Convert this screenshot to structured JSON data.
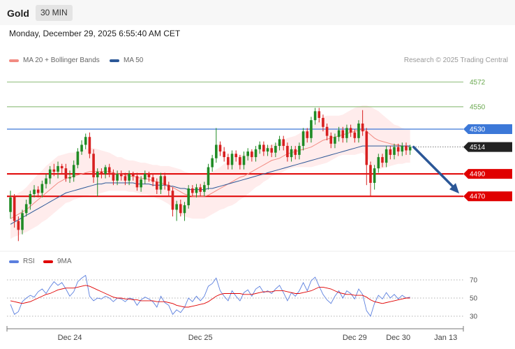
{
  "header": {
    "symbol": "Gold",
    "timeframe": "30 MIN"
  },
  "datetime": "Monday, December 29, 2025 6:55:40 AM CET",
  "legend_main": [
    {
      "label": "MA 20 + Bollinger Bands",
      "color": "#f28b82"
    },
    {
      "label": "MA 50",
      "color": "#2b5797"
    }
  ],
  "credit": "Research © 2025 Trading Central",
  "legend_rsi": [
    {
      "label": "RSI",
      "color": "#5b7fde"
    },
    {
      "label": "9MA",
      "color": "#e00000"
    }
  ],
  "chart_data": {
    "type": "candlestick",
    "y_range": [
      4424,
      4583
    ],
    "levels": [
      {
        "label": "4572",
        "value": 4572,
        "style": "target",
        "color": "#6aa84f"
      },
      {
        "label": "4550",
        "value": 4550,
        "style": "target",
        "color": "#6aa84f"
      },
      {
        "label": "4530",
        "value": 4530,
        "style": "resistance",
        "color": "#3c78d8"
      },
      {
        "label": "4514",
        "value": 4514,
        "style": "last",
        "color": "#222222"
      },
      {
        "label": "4490",
        "value": 4490,
        "style": "support",
        "color": "#e00000"
      },
      {
        "label": "4470",
        "value": 4470,
        "style": "support",
        "color": "#e00000"
      }
    ],
    "forecast_arrow": {
      "from": 4514,
      "to": 4470,
      "color": "#2b5797"
    },
    "candles": [
      [
        4456,
        4469,
        4450,
        4475
      ],
      [
        4470,
        4448,
        4442,
        4472
      ],
      [
        4448,
        4440,
        4430,
        4452
      ],
      [
        4440,
        4455,
        4436,
        4458
      ],
      [
        4455,
        4463,
        4452,
        4467
      ],
      [
        4463,
        4472,
        4458,
        4475
      ],
      [
        4472,
        4476,
        4469,
        4480
      ],
      [
        4476,
        4473,
        4469,
        4479
      ],
      [
        4473,
        4481,
        4469,
        4484
      ],
      [
        4481,
        4486,
        4477,
        4490
      ],
      [
        4486,
        4494,
        4481,
        4497
      ],
      [
        4494,
        4492,
        4488,
        4499
      ],
      [
        4492,
        4497,
        4486,
        4501
      ],
      [
        4497,
        4495,
        4490,
        4499
      ],
      [
        4495,
        4486,
        4483,
        4499
      ],
      [
        4486,
        4487,
        4482,
        4493
      ],
      [
        4487,
        4498,
        4483,
        4502
      ],
      [
        4498,
        4510,
        4495,
        4513
      ],
      [
        4510,
        4516,
        4507,
        4520
      ],
      [
        4516,
        4523,
        4512,
        4526
      ],
      [
        4523,
        4508,
        4504,
        4527
      ],
      [
        4508,
        4487,
        4482,
        4512
      ],
      [
        4487,
        4492,
        4470,
        4495
      ],
      [
        4492,
        4490,
        4486,
        4495
      ],
      [
        4490,
        4496,
        4486,
        4498
      ],
      [
        4496,
        4491,
        4487,
        4499
      ],
      [
        4491,
        4484,
        4480,
        4494
      ],
      [
        4484,
        4490,
        4480,
        4493
      ],
      [
        4490,
        4488,
        4484,
        4493
      ],
      [
        4488,
        4484,
        4480,
        4491
      ],
      [
        4484,
        4490,
        4480,
        4493
      ],
      [
        4490,
        4488,
        4484,
        4492
      ],
      [
        4488,
        4478,
        4475,
        4491
      ],
      [
        4478,
        4485,
        4474,
        4488
      ],
      [
        4485,
        4490,
        4481,
        4493
      ],
      [
        4490,
        4487,
        4483,
        4492
      ],
      [
        4487,
        4483,
        4479,
        4490
      ],
      [
        4483,
        4476,
        4472,
        4486
      ],
      [
        4476,
        4488,
        4472,
        4491
      ],
      [
        4488,
        4480,
        4476,
        4491
      ],
      [
        4480,
        4475,
        4470,
        4483
      ],
      [
        4475,
        4458,
        4452,
        4478
      ],
      [
        4458,
        4463,
        4448,
        4466
      ],
      [
        4463,
        4455,
        4452,
        4467
      ],
      [
        4455,
        4462,
        4448,
        4465
      ],
      [
        4462,
        4477,
        4459,
        4480
      ],
      [
        4477,
        4473,
        4470,
        4480
      ],
      [
        4473,
        4478,
        4469,
        4481
      ],
      [
        4478,
        4474,
        4470,
        4481
      ],
      [
        4474,
        4480,
        4470,
        4483
      ],
      [
        4480,
        4496,
        4476,
        4499
      ],
      [
        4496,
        4504,
        4492,
        4507
      ],
      [
        4504,
        4516,
        4500,
        4531
      ],
      [
        4516,
        4510,
        4506,
        4519
      ],
      [
        4510,
        4505,
        4501,
        4514
      ],
      [
        4505,
        4498,
        4494,
        4508
      ],
      [
        4498,
        4508,
        4494,
        4511
      ],
      [
        4508,
        4505,
        4501,
        4511
      ],
      [
        4505,
        4498,
        4494,
        4507
      ],
      [
        4498,
        4506,
        4494,
        4510
      ],
      [
        4506,
        4510,
        4502,
        4513
      ],
      [
        4510,
        4505,
        4501,
        4512
      ],
      [
        4505,
        4512,
        4501,
        4515
      ],
      [
        4512,
        4516,
        4508,
        4519
      ],
      [
        4516,
        4510,
        4506,
        4519
      ],
      [
        4510,
        4513,
        4506,
        4516
      ],
      [
        4513,
        4509,
        4505,
        4516
      ],
      [
        4509,
        4515,
        4505,
        4518
      ],
      [
        4515,
        4521,
        4511,
        4524
      ],
      [
        4521,
        4515,
        4511,
        4524
      ],
      [
        4515,
        4505,
        4501,
        4518
      ],
      [
        4505,
        4512,
        4501,
        4515
      ],
      [
        4512,
        4507,
        4503,
        4515
      ],
      [
        4507,
        4515,
        4503,
        4518
      ],
      [
        4515,
        4528,
        4511,
        4531
      ],
      [
        4528,
        4522,
        4518,
        4531
      ],
      [
        4522,
        4538,
        4518,
        4541
      ],
      [
        4538,
        4546,
        4534,
        4549
      ],
      [
        4546,
        4540,
        4536,
        4549
      ],
      [
        4540,
        4532,
        4528,
        4543
      ],
      [
        4532,
        4524,
        4520,
        4535
      ],
      [
        4524,
        4517,
        4513,
        4527
      ],
      [
        4517,
        4523,
        4513,
        4526
      ],
      [
        4523,
        4529,
        4519,
        4532
      ],
      [
        4529,
        4522,
        4518,
        4532
      ],
      [
        4522,
        4531,
        4518,
        4534
      ],
      [
        4531,
        4527,
        4523,
        4534
      ],
      [
        4527,
        4522,
        4518,
        4530
      ],
      [
        4522,
        4535,
        4518,
        4538
      ],
      [
        4535,
        4528,
        4524,
        4547
      ],
      [
        4528,
        4498,
        4480,
        4531
      ],
      [
        4498,
        4482,
        4470,
        4501
      ],
      [
        4482,
        4495,
        4476,
        4498
      ],
      [
        4495,
        4505,
        4491,
        4508
      ],
      [
        4505,
        4500,
        4496,
        4508
      ],
      [
        4500,
        4512,
        4496,
        4515
      ],
      [
        4512,
        4507,
        4503,
        4515
      ],
      [
        4507,
        4514,
        4503,
        4517
      ],
      [
        4514,
        4510,
        4506,
        4517
      ],
      [
        4510,
        4515,
        4506,
        4518
      ],
      [
        4515,
        4511,
        4507,
        4518
      ],
      [
        4511,
        4514,
        4507,
        4516
      ]
    ],
    "ma20": [
      4450,
      4452,
      4454,
      4456,
      4458,
      4461,
      4464,
      4467,
      4470,
      4473,
      4476,
      4479,
      4482,
      4484,
      4486,
      4487,
      4488,
      4489,
      4490,
      4491,
      4492,
      4492,
      4492,
      4492,
      4492,
      4492,
      4491,
      4490,
      4490,
      4489,
      4488,
      4488,
      4487,
      4486,
      4486,
      4485,
      4484,
      4483,
      4482,
      4481,
      4480,
      4478,
      4476,
      4474,
      4472,
      4471,
      4470,
      4470,
      4470,
      4470,
      4471,
      4473,
      4475,
      4477,
      4479,
      4481,
      4483,
      4485,
      4487,
      4488,
      4490,
      4492,
      4494,
      4496,
      4498,
      4500,
      4502,
      4503,
      4504,
      4506,
      4508,
      4509,
      4510,
      4511,
      4512,
      4513,
      4514,
      4516,
      4518,
      4520,
      4521,
      4522,
      4523,
      4524,
      4525,
      4526,
      4527,
      4528,
      4529,
      4530,
      4528,
      4525,
      4522,
      4520,
      4519,
      4518,
      4517,
      4516,
      4516,
      4515,
      4515,
      4515
    ],
    "ma50": [
      4445,
      4447,
      4449,
      4451,
      4453,
      4455,
      4457,
      4459,
      4461,
      4463,
      4465,
      4467,
      4469,
      4471,
      4473,
      4474,
      4475,
      4476,
      4477,
      4478,
      4479,
      4480,
      4481,
      4481,
      4482,
      4482,
      4482,
      4482,
      4482,
      4482,
      4482,
      4482,
      4481,
      4481,
      4481,
      4481,
      4480,
      4480,
      4480,
      4480,
      4479,
      4479,
      4478,
      4477,
      4477,
      4476,
      4476,
      4476,
      4476,
      4476,
      4477,
      4477,
      4478,
      4479,
      4480,
      4481,
      4482,
      4483,
      4484,
      4485,
      4486,
      4487,
      4488,
      4489,
      4490,
      4491,
      4492,
      4493,
      4494,
      4495,
      4496,
      4497,
      4498,
      4499,
      4500,
      4501,
      4502,
      4503,
      4504,
      4505,
      4506,
      4507,
      4508,
      4509,
      4510,
      4511,
      4512,
      4513,
      4514,
      4515,
      4515,
      4515,
      4515,
      4515,
      4515,
      4515,
      4515,
      4515,
      4515,
      4515,
      4515,
      4515
    ],
    "bb_width": [
      18,
      18,
      19,
      19,
      20,
      21,
      22,
      23,
      23,
      24,
      24,
      24,
      24,
      23,
      22,
      22,
      21,
      21,
      21,
      21,
      21,
      21,
      20,
      19,
      18,
      17,
      16,
      15,
      15,
      14,
      14,
      14,
      14,
      14,
      14,
      14,
      14,
      15,
      15,
      16,
      17,
      18,
      19,
      20,
      20,
      20,
      20,
      20,
      20,
      20,
      19,
      19,
      19,
      19,
      20,
      20,
      21,
      21,
      20,
      19,
      18,
      17,
      16,
      16,
      15,
      15,
      14,
      14,
      14,
      14,
      14,
      14,
      14,
      15,
      16,
      17,
      18,
      19,
      20,
      21,
      21,
      20,
      19,
      18,
      18,
      19,
      20,
      21,
      21,
      21,
      23,
      25,
      26,
      26,
      24,
      22,
      20,
      18,
      17,
      16,
      15,
      15
    ],
    "rsi_range": [
      20,
      80
    ],
    "rsi_levels": [
      {
        "label": "70",
        "value": 70
      },
      {
        "label": "50",
        "value": 50
      },
      {
        "label": "30",
        "value": 30
      }
    ],
    "rsi": [
      43,
      32,
      35,
      46,
      50,
      53,
      51,
      57,
      60,
      55,
      62,
      68,
      64,
      67,
      60,
      52,
      57,
      68,
      72,
      75,
      52,
      47,
      50,
      49,
      52,
      50,
      46,
      50,
      49,
      46,
      50,
      49,
      42,
      48,
      51,
      49,
      46,
      40,
      52,
      45,
      42,
      32,
      37,
      34,
      40,
      50,
      46,
      52,
      47,
      52,
      63,
      66,
      72,
      58,
      52,
      47,
      58,
      52,
      47,
      56,
      59,
      52,
      60,
      63,
      56,
      58,
      55,
      60,
      64,
      56,
      47,
      56,
      52,
      58,
      67,
      58,
      69,
      73,
      63,
      54,
      48,
      44,
      52,
      58,
      50,
      58,
      55,
      49,
      60,
      54,
      36,
      30,
      44,
      53,
      49,
      56,
      50,
      54,
      49,
      53,
      50,
      51
    ],
    "rsi_ma": [
      47,
      46,
      45,
      44,
      45,
      46,
      48,
      50,
      52,
      54,
      55,
      57,
      59,
      60,
      61,
      61,
      61,
      62,
      63,
      64,
      63,
      61,
      59,
      57,
      55,
      53,
      51,
      50,
      50,
      49,
      49,
      48,
      48,
      47,
      47,
      47,
      47,
      46,
      46,
      46,
      45,
      44,
      42,
      41,
      40,
      40,
      41,
      42,
      43,
      44,
      46,
      49,
      52,
      54,
      55,
      55,
      55,
      55,
      55,
      54,
      54,
      54,
      55,
      56,
      57,
      57,
      57,
      58,
      58,
      58,
      57,
      56,
      55,
      55,
      56,
      57,
      58,
      60,
      62,
      62,
      61,
      60,
      58,
      56,
      55,
      54,
      54,
      53,
      53,
      53,
      51,
      48,
      46,
      45,
      44,
      45,
      46,
      47,
      48,
      49,
      50,
      50
    ],
    "x_ticks": [
      {
        "label": "Dec 24",
        "index": 15
      },
      {
        "label": "Dec 25",
        "index": 48
      },
      {
        "label": "Dec 29",
        "index": 87
      },
      {
        "label": "Dec 30",
        "index": 98
      },
      {
        "label": "Jan 13",
        "index": 110
      }
    ]
  }
}
